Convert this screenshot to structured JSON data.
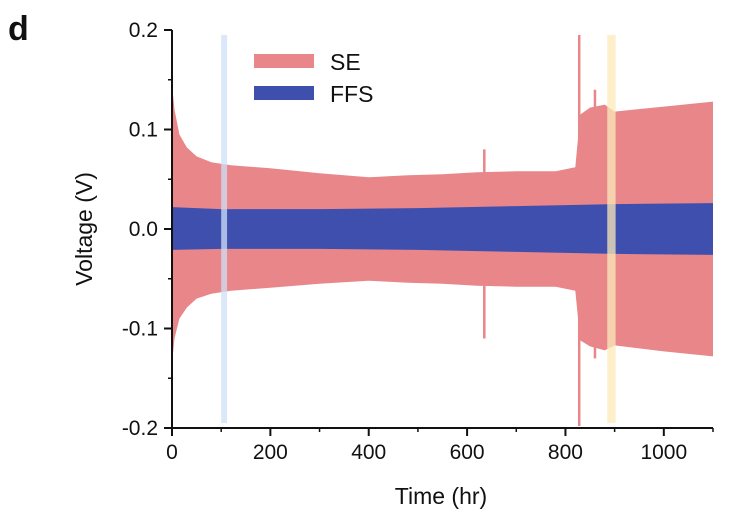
{
  "panel_label": "d",
  "colors": {
    "SE": "#e8868a",
    "FFS": "#3f4fae",
    "highlight_blue": "#cfe0f5",
    "highlight_yellow": "#fbe9b8",
    "axis": "#111111"
  },
  "chart_data": {
    "type": "area",
    "xlabel": "Time (hr)",
    "ylabel": "Voltage (V)",
    "xlim": [
      0,
      1100
    ],
    "ylim": [
      -0.2,
      0.2
    ],
    "xticks": [
      0,
      200,
      400,
      600,
      800,
      1000
    ],
    "xtick_labels": [
      "0",
      "200",
      "400",
      "600",
      "800",
      "1000"
    ],
    "yticks": [
      -0.2,
      -0.1,
      0.0,
      0.1,
      0.2
    ],
    "ytick_labels": [
      "-0.2",
      "-0.1",
      "0.0",
      "0.1",
      "0.2"
    ],
    "legend": {
      "position": "top-left",
      "entries": [
        "SE",
        "FFS"
      ]
    },
    "series": [
      {
        "name": "SE",
        "x": [
          0,
          5,
          15,
          30,
          50,
          80,
          120,
          200,
          300,
          400,
          480,
          550,
          620,
          700,
          780,
          820,
          830,
          850,
          880,
          900,
          1000,
          1100
        ],
        "upper": [
          0.145,
          0.12,
          0.095,
          0.082,
          0.073,
          0.067,
          0.064,
          0.061,
          0.056,
          0.052,
          0.054,
          0.055,
          0.057,
          0.058,
          0.058,
          0.062,
          0.115,
          0.122,
          0.125,
          0.118,
          0.123,
          0.128
        ],
        "lower": [
          -0.135,
          -0.11,
          -0.09,
          -0.079,
          -0.07,
          -0.065,
          -0.062,
          -0.059,
          -0.055,
          -0.052,
          -0.054,
          -0.055,
          -0.057,
          -0.058,
          -0.058,
          -0.062,
          -0.112,
          -0.118,
          -0.122,
          -0.117,
          -0.123,
          -0.128
        ],
        "spikes": [
          {
            "x": 635,
            "upper": 0.08,
            "lower": -0.11
          },
          {
            "x": 828,
            "upper": 0.195,
            "lower": -0.198
          },
          {
            "x": 860,
            "upper": 0.14,
            "lower": -0.13
          }
        ]
      },
      {
        "name": "FFS",
        "x": [
          0,
          100,
          300,
          500,
          700,
          900,
          1100
        ],
        "upper": [
          0.022,
          0.02,
          0.02,
          0.021,
          0.023,
          0.025,
          0.026
        ],
        "lower": [
          -0.021,
          -0.02,
          -0.02,
          -0.021,
          -0.023,
          -0.025,
          -0.026
        ]
      }
    ],
    "highlight_bands": [
      {
        "x_start": 100,
        "x_end": 112,
        "color": "blue"
      },
      {
        "x_start": 885,
        "x_end": 902,
        "color": "yellow"
      }
    ]
  }
}
